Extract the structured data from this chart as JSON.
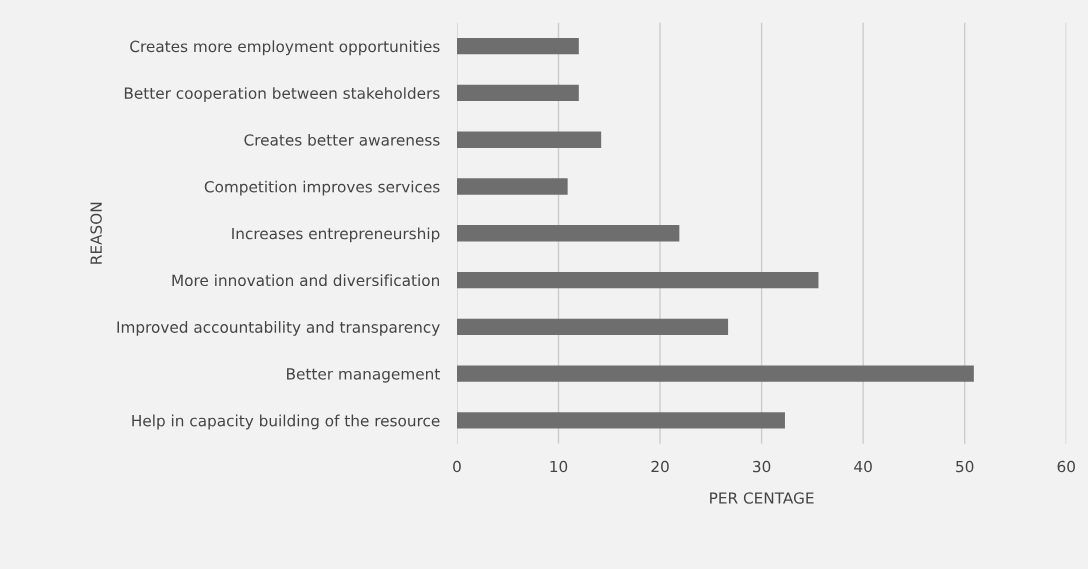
{
  "chart_data": {
    "type": "bar",
    "orientation": "horizontal",
    "xlabel": "PER CENTAGE",
    "ylabel": "REASON",
    "categories": [
      "Creates more employment opportunities",
      "Better cooperation between stakeholders",
      "Creates better awareness",
      "Competition improves services",
      "Increases entrepreneurship",
      "More innovation and diversification",
      "Improved accountability and transparency",
      "Better management",
      "Help in capacity building of the resource"
    ],
    "values": [
      12.0,
      12.0,
      14.2,
      10.9,
      21.9,
      35.6,
      26.7,
      50.9,
      32.3
    ],
    "color": "#6e6e6e",
    "xlim": [
      0,
      60
    ],
    "xticks": [
      0,
      10,
      20,
      30,
      40,
      50,
      60
    ],
    "grid": "x",
    "legend": false
  }
}
